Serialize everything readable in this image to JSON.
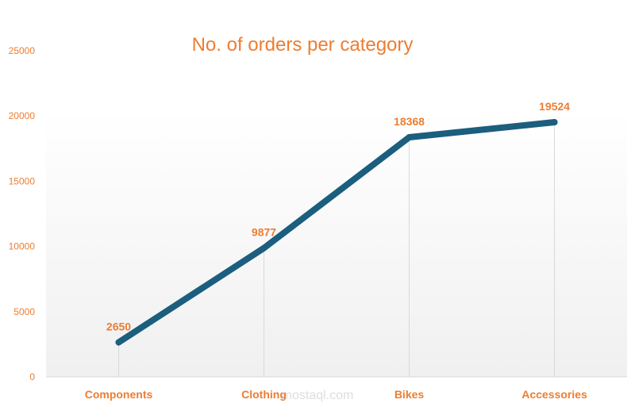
{
  "chart_data": {
    "type": "line",
    "title": "No. of orders per category",
    "categories": [
      "Components",
      "Clothing",
      "Bikes",
      "Accessories"
    ],
    "values": [
      2650,
      9877,
      18368,
      19524
    ],
    "data_labels": [
      "2650",
      "9877",
      "18368",
      "19524"
    ],
    "ylim": [
      0,
      25000
    ],
    "yticks": [
      0,
      5000,
      10000,
      15000,
      20000,
      25000
    ],
    "ytick_labels": [
      "0",
      "5000",
      "10000",
      "15000",
      "20000",
      "25000"
    ],
    "xlabel": "",
    "ylabel": "",
    "grid": "vertical lines at categories",
    "legend": "none",
    "colors": {
      "line": "#1B5E7E",
      "text": "#ED7D31",
      "plot_bg": "#F2F2F2"
    }
  },
  "watermark": "مستقل mostaql.com"
}
